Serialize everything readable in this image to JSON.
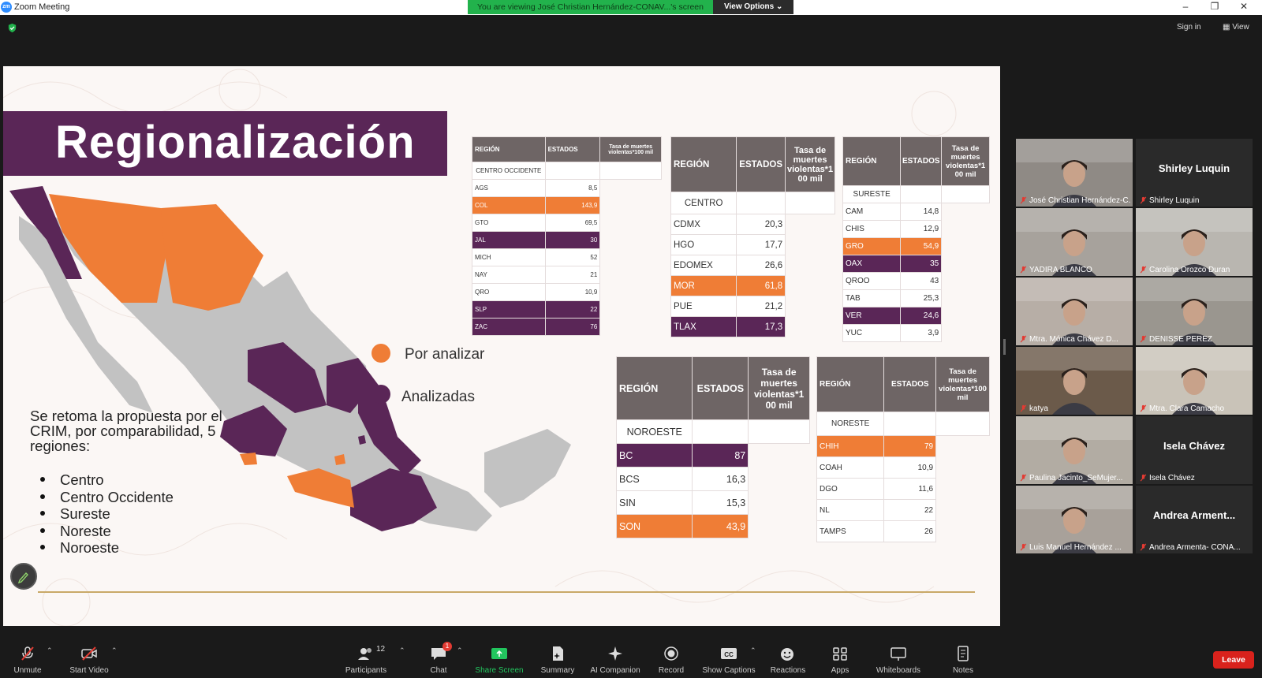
{
  "window": {
    "title": "Zoom Meeting",
    "logo_text": "zm"
  },
  "share": {
    "banner": "You are viewing José Christian Hernández-CONAV...'s screen",
    "view_options": "View Options"
  },
  "topright": {
    "sign_in": "Sign in",
    "view": "View"
  },
  "slide": {
    "title": "Regionalización",
    "legend": {
      "to_analyze": "Por analizar",
      "analyzed": "Analizadas"
    },
    "body_text": "Se retoma la propuesta por el CRIM, por comparabilidad, 5 regiones:",
    "regions_list": [
      "Centro",
      "Centro Occidente",
      "Sureste",
      "Noreste",
      "Noroeste"
    ],
    "colors": {
      "orange": "#ef7d36",
      "purple": "#5a2657",
      "gray": "#c2c2c2",
      "header": "#6e6565"
    }
  },
  "tables": {
    "header": {
      "region": "REGIÓN",
      "states": "ESTADOS",
      "rate": "Tasa de muertes violentas*100 mil",
      "rate_break": "Tasa de muertes violentas*1 00 mil"
    },
    "centro_occidente": {
      "region": "CENTRO OCCIDENTE",
      "rows": [
        {
          "state": "AGS",
          "value": "8,5",
          "hl": ""
        },
        {
          "state": "COL",
          "value": "143,9",
          "hl": "orange"
        },
        {
          "state": "GTO",
          "value": "69,5",
          "hl": ""
        },
        {
          "state": "JAL",
          "value": "30",
          "hl": "purple"
        },
        {
          "state": "MICH",
          "value": "52",
          "hl": ""
        },
        {
          "state": "NAY",
          "value": "21",
          "hl": ""
        },
        {
          "state": "QRO",
          "value": "10,9",
          "hl": ""
        },
        {
          "state": "SLP",
          "value": "22",
          "hl": "purple"
        },
        {
          "state": "ZAC",
          "value": "76",
          "hl": "purple"
        }
      ]
    },
    "centro": {
      "region": "CENTRO",
      "rows": [
        {
          "state": "CDMX",
          "value": "20,3",
          "hl": ""
        },
        {
          "state": "HGO",
          "value": "17,7",
          "hl": ""
        },
        {
          "state": "EDOMEX",
          "value": "26,6",
          "hl": ""
        },
        {
          "state": "MOR",
          "value": "61,8",
          "hl": "orange"
        },
        {
          "state": "PUE",
          "value": "21,2",
          "hl": ""
        },
        {
          "state": "TLAX",
          "value": "17,3",
          "hl": "purple"
        }
      ]
    },
    "sureste": {
      "region": "SURESTE",
      "rows": [
        {
          "state": "CAM",
          "value": "14,8",
          "hl": ""
        },
        {
          "state": "CHIS",
          "value": "12,9",
          "hl": ""
        },
        {
          "state": "GRO",
          "value": "54,9",
          "hl": "orange"
        },
        {
          "state": "OAX",
          "value": "35",
          "hl": "purple"
        },
        {
          "state": "QROO",
          "value": "43",
          "hl": ""
        },
        {
          "state": "TAB",
          "value": "25,3",
          "hl": ""
        },
        {
          "state": "VER",
          "value": "24,6",
          "hl": "purple"
        },
        {
          "state": "YUC",
          "value": "3,9",
          "hl": ""
        }
      ]
    },
    "noroeste": {
      "region": "NOROESTE",
      "rows": [
        {
          "state": "BC",
          "value": "87",
          "hl": "purple"
        },
        {
          "state": "BCS",
          "value": "16,3",
          "hl": ""
        },
        {
          "state": "SIN",
          "value": "15,3",
          "hl": ""
        },
        {
          "state": "SON",
          "value": "43,9",
          "hl": "orange"
        }
      ]
    },
    "noreste": {
      "region": "NORESTE",
      "rows": [
        {
          "state": "CHIH",
          "value": "79",
          "hl": "orange"
        },
        {
          "state": "COAH",
          "value": "10,9",
          "hl": ""
        },
        {
          "state": "DGO",
          "value": "11,6",
          "hl": ""
        },
        {
          "state": "NL",
          "value": "22",
          "hl": ""
        },
        {
          "state": "TAMPS",
          "value": "26",
          "hl": ""
        }
      ]
    }
  },
  "participants": [
    {
      "name": "José Christian Hernández-C...",
      "big": "",
      "video": true
    },
    {
      "name": "Shirley Luquin",
      "big": "Shirley Luquin",
      "video": false
    },
    {
      "name": "YADIRA BLANCO",
      "big": "",
      "video": true
    },
    {
      "name": "Carolina Orozco Duran",
      "big": "",
      "video": true
    },
    {
      "name": "Mtra. Mónica Chávez D...",
      "big": "",
      "video": true
    },
    {
      "name": "DENISSE PEREZ",
      "big": "",
      "video": true
    },
    {
      "name": "katya",
      "big": "",
      "video": true
    },
    {
      "name": "Mtra. Clara Camacho",
      "big": "",
      "video": true
    },
    {
      "name": "Paulina Jacinto_SeMujer...",
      "big": "",
      "video": true
    },
    {
      "name": "Isela Chávez",
      "big": "Isela Chávez",
      "video": false
    },
    {
      "name": "Luis Manuel Hernández ...",
      "big": "",
      "video": true
    },
    {
      "name": "Andrea Armenta- CONA...",
      "big": "Andrea Arment...",
      "video": false
    }
  ],
  "toolbar": {
    "unmute": "Unmute",
    "start_video": "Start Video",
    "participants": "Participants",
    "participants_count": "12",
    "chat": "Chat",
    "chat_badge": "1",
    "share_screen": "Share Screen",
    "summary": "Summary",
    "ai_companion": "AI Companion",
    "record": "Record",
    "show_captions": "Show Captions",
    "reactions": "Reactions",
    "apps": "Apps",
    "whiteboards": "Whiteboards",
    "notes": "Notes",
    "leave": "Leave"
  }
}
